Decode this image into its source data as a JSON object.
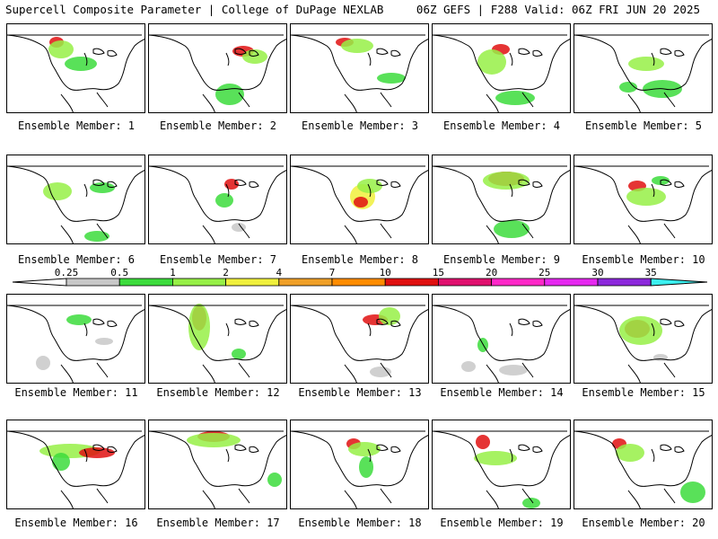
{
  "header": {
    "title": "Supercell Composite Parameter | College of DuPage NEXLAB",
    "run_info": "06Z GEFS | F288 Valid: 06Z FRI JUN 20 2025"
  },
  "members": [
    {
      "label": "Ensemble Member: 1"
    },
    {
      "label": "Ensemble Member: 2"
    },
    {
      "label": "Ensemble Member: 3"
    },
    {
      "label": "Ensemble Member: 4"
    },
    {
      "label": "Ensemble Member: 5"
    },
    {
      "label": "Ensemble Member: 6"
    },
    {
      "label": "Ensemble Member: 7"
    },
    {
      "label": "Ensemble Member: 8"
    },
    {
      "label": "Ensemble Member: 9"
    },
    {
      "label": "Ensemble Member: 10"
    },
    {
      "label": "Ensemble Member: 11"
    },
    {
      "label": "Ensemble Member: 12"
    },
    {
      "label": "Ensemble Member: 13"
    },
    {
      "label": "Ensemble Member: 14"
    },
    {
      "label": "Ensemble Member: 15"
    },
    {
      "label": "Ensemble Member: 16"
    },
    {
      "label": "Ensemble Member: 17"
    },
    {
      "label": "Ensemble Member: 18"
    },
    {
      "label": "Ensemble Member: 19"
    },
    {
      "label": "Ensemble Member: 20"
    }
  ],
  "colorbar": {
    "labels": [
      "0.25",
      "0.5",
      "1",
      "2",
      "4",
      "7",
      "10",
      "15",
      "20",
      "25",
      "30",
      "35"
    ],
    "colors": [
      "#c8c8c8",
      "#3cdc3c",
      "#96f046",
      "#f0f03c",
      "#f0a028",
      "#ff8c00",
      "#e01010",
      "#e0106e",
      "#ff28c8",
      "#e628f0",
      "#8c28dc",
      "#b464d2",
      "#3cf0f0"
    ]
  }
}
